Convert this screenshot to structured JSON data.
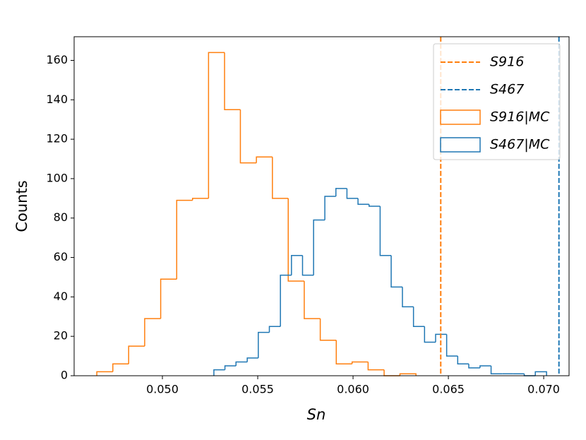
{
  "chart_data": {
    "type": "histogram",
    "xlabel": "Sn",
    "ylabel": "Counts",
    "xlim": [
      0.04537,
      0.07133
    ],
    "ylim": [
      0,
      172
    ],
    "xticks": [
      {
        "value": 0.05,
        "label": "0.050"
      },
      {
        "value": 0.055,
        "label": "0.055"
      },
      {
        "value": 0.06,
        "label": "0.060"
      },
      {
        "value": 0.065,
        "label": "0.065"
      },
      {
        "value": 0.07,
        "label": "0.070"
      }
    ],
    "yticks": [
      0,
      20,
      40,
      60,
      80,
      100,
      120,
      140,
      160
    ],
    "legend": "upper right",
    "vlines": [
      {
        "name": "S916",
        "x": 0.0646,
        "color": "#ff7f0e"
      },
      {
        "name": "S467",
        "x": 0.0708,
        "color": "#1f77b4"
      }
    ],
    "series": [
      {
        "name": "S916|MC",
        "color": "#ff7f0e",
        "bins": [
          0.04656,
          0.0474,
          0.04823,
          0.04907,
          0.04991,
          0.05075,
          0.05158,
          0.05242,
          0.05326,
          0.05409,
          0.05493,
          0.05577,
          0.0566,
          0.05744,
          0.05828,
          0.05912,
          0.05995,
          0.06079,
          0.06163,
          0.06246,
          0.0633
        ],
        "values": [
          2,
          6,
          15,
          29,
          49,
          89,
          90,
          164,
          135,
          108,
          111,
          90,
          48,
          29,
          18,
          6,
          7,
          3,
          0,
          1
        ]
      },
      {
        "name": "S467|MC",
        "color": "#1f77b4",
        "bins": [
          0.0527,
          0.05328,
          0.05386,
          0.05445,
          0.05503,
          0.05561,
          0.05619,
          0.05677,
          0.05735,
          0.05793,
          0.05852,
          0.0591,
          0.05968,
          0.06026,
          0.06084,
          0.06142,
          0.062,
          0.06259,
          0.06317,
          0.06375,
          0.06433,
          0.06491,
          0.06549,
          0.06607,
          0.06666,
          0.06724,
          0.06782,
          0.0684,
          0.06898,
          0.06956,
          0.07015
        ],
        "values": [
          3,
          5,
          7,
          9,
          22,
          25,
          51,
          61,
          51,
          79,
          91,
          95,
          90,
          87,
          86,
          61,
          45,
          35,
          25,
          17,
          21,
          10,
          6,
          4,
          5,
          1,
          1,
          1,
          0,
          2
        ]
      }
    ]
  }
}
